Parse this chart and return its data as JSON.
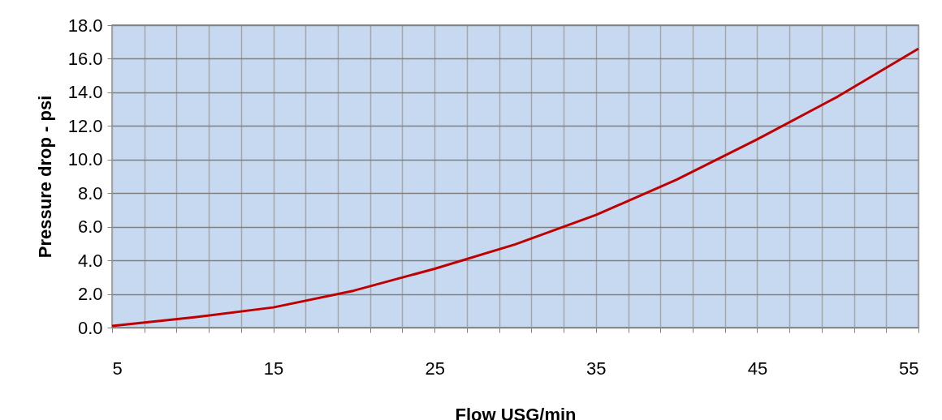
{
  "chart_data": {
    "type": "line",
    "xlabel": "Flow USG/min",
    "ylabel": "Pressure drop - psi",
    "x": [
      5,
      10,
      15,
      20,
      25,
      30,
      35,
      40,
      45,
      50,
      55
    ],
    "series": [
      {
        "color": "#c00000",
        "values": [
          0.1,
          0.6,
          1.2,
          2.2,
          3.5,
          4.95,
          6.7,
          8.8,
          11.2,
          13.75,
          16.6
        ]
      }
    ],
    "xlim": [
      5,
      55
    ],
    "xticks": [
      5,
      {
        "value": 7,
        "label": null
      },
      {
        "value": 9,
        "label": null
      },
      {
        "value": 11,
        "label": null
      },
      {
        "value": 13,
        "label": null
      },
      15,
      {
        "value": 17,
        "label": null
      },
      {
        "value": 19,
        "label": null
      },
      {
        "value": 21,
        "label": null
      },
      {
        "value": 23,
        "label": null
      },
      25,
      {
        "value": 27,
        "label": null
      },
      {
        "value": 29,
        "label": null
      },
      {
        "value": 31,
        "label": null
      },
      {
        "value": 33,
        "label": null
      },
      35,
      {
        "value": 37,
        "label": null
      },
      {
        "value": 39,
        "label": null
      },
      {
        "value": 41,
        "label": null
      },
      {
        "value": 43,
        "label": null
      },
      45,
      {
        "value": 47,
        "label": null
      },
      {
        "value": 49,
        "label": null
      },
      {
        "value": 51,
        "label": null
      },
      {
        "value": 53,
        "label": null
      },
      55
    ],
    "ylim": [
      0,
      18
    ],
    "yticks": [
      {
        "value": 0,
        "label": "0.0"
      },
      {
        "value": 2,
        "label": "2.0"
      },
      {
        "value": 4,
        "label": "4.0"
      },
      {
        "value": 6,
        "label": "6.0"
      },
      {
        "value": 8,
        "label": "8.0"
      },
      {
        "value": 10,
        "label": "10.0"
      },
      {
        "value": 12,
        "label": "12.0"
      },
      {
        "value": 14,
        "label": "14.0"
      },
      {
        "value": 16,
        "label": "16.0"
      },
      {
        "value": 18,
        "label": "18.0"
      }
    ],
    "grid": true,
    "marker": "none",
    "line_style": "solid"
  }
}
